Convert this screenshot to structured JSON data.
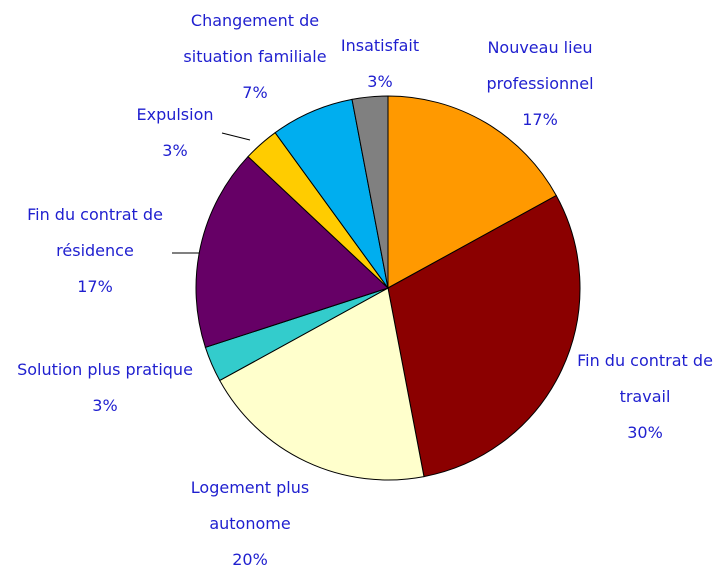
{
  "chart_data": {
    "type": "pie",
    "categories": [
      "Nouveau lieu professionnel",
      "Fin du contrat de travail",
      "Logement plus autonome",
      "Solution plus pratique",
      "Fin du contrat de résidence",
      "Expulsion",
      "Changement de situation familiale",
      "Insatisfait"
    ],
    "values": [
      17,
      30,
      20,
      3,
      17,
      3,
      7,
      3
    ],
    "value_labels": [
      "17%",
      "30%",
      "20%",
      "3%",
      "17%",
      "3%",
      "7%",
      "3%"
    ],
    "colors": [
      "#ff9900",
      "#8b0000",
      "#ffffcc",
      "#33cccc",
      "#660066",
      "#ffcc00",
      "#00aeef",
      "#808080"
    ]
  }
}
